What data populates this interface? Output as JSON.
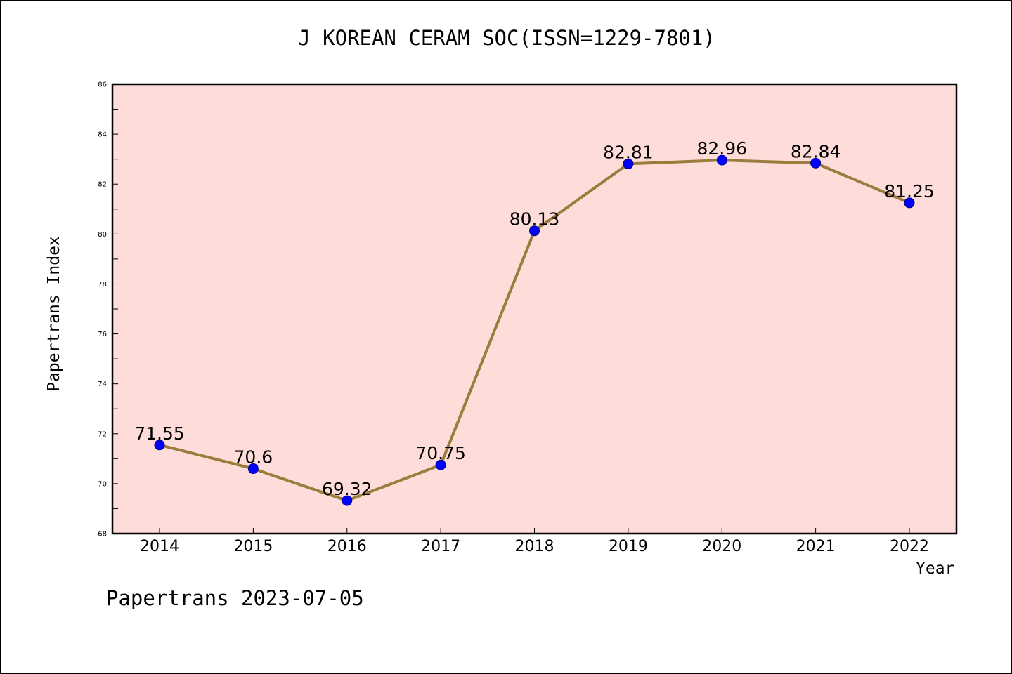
{
  "title": "J KOREAN CERAM SOC(ISSN=1229-7801)",
  "footer": "Papertrans 2023-07-05",
  "colors": {
    "plot_background": "#fddcda",
    "line": "#9a7d3c",
    "marker": "#0000ff"
  },
  "chart_data": {
    "type": "line",
    "title": "J KOREAN CERAM SOC(ISSN=1229-7801)",
    "xlabel": "Year",
    "ylabel": "Papertrans Index",
    "categories": [
      "2014",
      "2015",
      "2016",
      "2017",
      "2018",
      "2019",
      "2020",
      "2021",
      "2022"
    ],
    "values": [
      71.55,
      70.6,
      69.32,
      70.75,
      80.13,
      82.81,
      82.96,
      82.84,
      81.25
    ],
    "data_labels": [
      "71.55",
      "70.6",
      "69.32",
      "70.75",
      "80.13",
      "82.81",
      "82.96",
      "82.84",
      "81.25"
    ],
    "ylim": [
      68,
      86
    ],
    "yticks": [
      68,
      70,
      72,
      74,
      76,
      78,
      80,
      82,
      84,
      86
    ],
    "grid": false,
    "legend": "none"
  }
}
